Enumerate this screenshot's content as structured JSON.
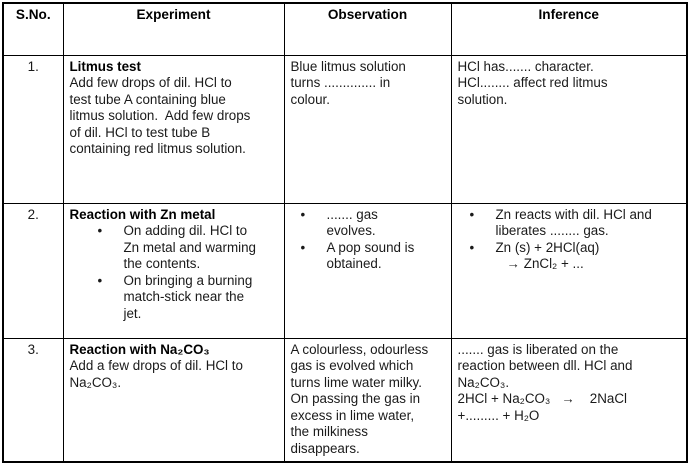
{
  "icons": {
    "bullet_glyph": "•"
  },
  "table": {
    "headers": [
      "S.No.",
      "Experiment",
      "Observation",
      "Inference"
    ],
    "rows": [
      {
        "sno": "1.",
        "experiment_title": "Litmus test",
        "experiment_text": "Add few drops of dil. HCl to\ntest tube A containing blue\nlitmus solution.  Add few drops\nof dil. HCl to test tube B\ncontaining red litmus solution.",
        "observation_text": "Blue litmus solution\nturns .............. in\ncolour.",
        "inference_text": "HCl has....... character.\nHCl........ affect red litmus\nsolution."
      },
      {
        "sno": "2.",
        "experiment_title": "Reaction with Zn metal",
        "experiment_bullets": [
          "On adding dil. HCl to\nZn metal and warming\nthe contents.",
          "On bringing a burning\nmatch-stick near the\njet."
        ],
        "observation_bullets": [
          "....... gas\nevolves.",
          "A pop sound is\nobtained."
        ],
        "inference_bullets": [
          "Zn reacts with dil. HCl and\nliberates ........ gas.",
          "Zn (s) + 2HCl(aq)\n   → ZnCl₂ + ..."
        ]
      },
      {
        "sno": "3.",
        "experiment_title": "Reaction with Na₂CO₃",
        "experiment_text": "Add a few drops of dil. HCl to\nNa₂CO₃.",
        "observation_text": "A colourless, odourless\ngas is evolved which\nturns lime water milky.\nOn passing the gas in\nexcess in lime water,\nthe milkiness\ndisappears.",
        "inference_text": "....... gas is liberated on the\nreaction between dll. HCl and\nNa₂CO₃.\n2HCl + Na₂CO₃   →    2NaCl\n+......... + H₂O"
      }
    ]
  }
}
